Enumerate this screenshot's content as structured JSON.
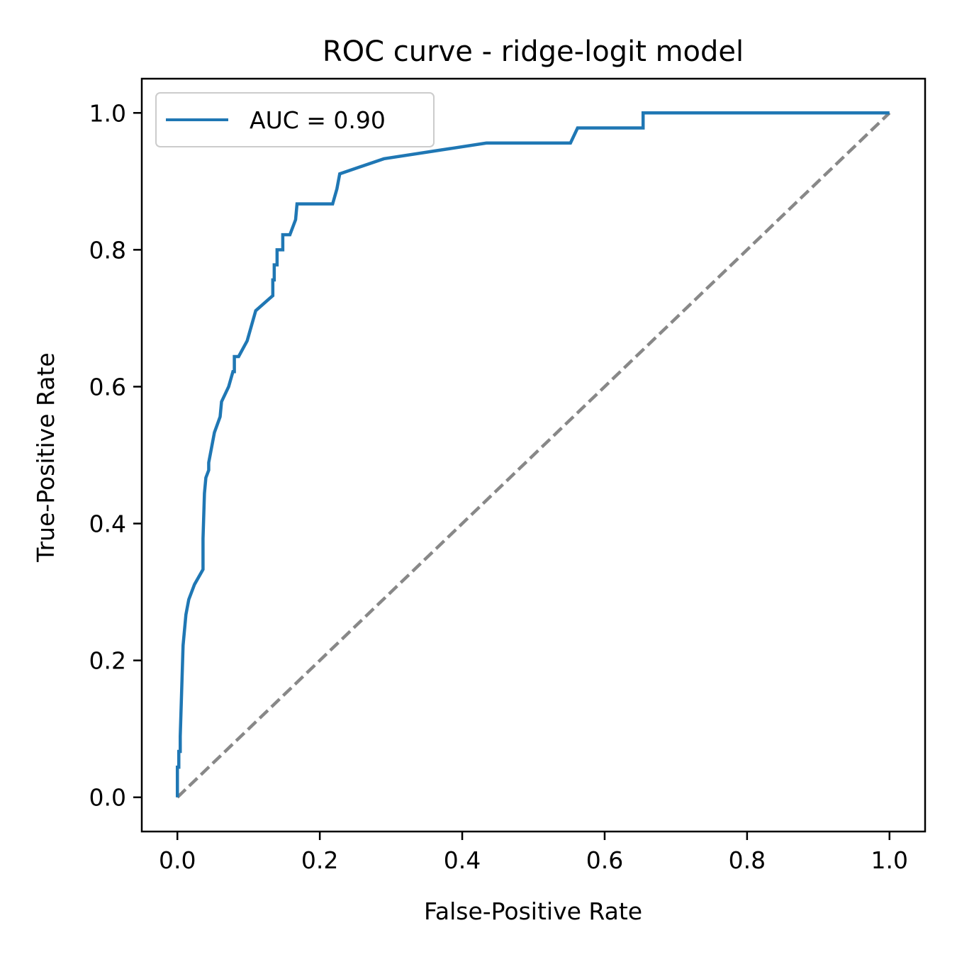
{
  "chart_data": {
    "type": "line",
    "title": "ROC curve - ridge-logit model",
    "xlabel": "False-Positive Rate",
    "ylabel": "True-Positive Rate",
    "xlim": [
      -0.05,
      1.05
    ],
    "ylim": [
      -0.05,
      1.05
    ],
    "xticks": [
      0.0,
      0.2,
      0.4,
      0.6,
      0.8,
      1.0
    ],
    "xtick_labels": [
      "0.0",
      "0.2",
      "0.4",
      "0.6",
      "0.8",
      "1.0"
    ],
    "yticks": [
      0.0,
      0.2,
      0.4,
      0.6,
      0.8,
      1.0
    ],
    "ytick_labels": [
      "0.0",
      "0.2",
      "0.4",
      "0.6",
      "0.8",
      "1.0"
    ],
    "grid": false,
    "legend_position": "top-left",
    "series": [
      {
        "name": "AUC = 0.90",
        "color": "#1f77b4",
        "style": "solid",
        "x": [
          0.0,
          0.0,
          0.002,
          0.002,
          0.004,
          0.004,
          0.008,
          0.008,
          0.012,
          0.012,
          0.016,
          0.016,
          0.024,
          0.024,
          0.036,
          0.036,
          0.038,
          0.038,
          0.04,
          0.04,
          0.044,
          0.044,
          0.052,
          0.052,
          0.06,
          0.062,
          0.062,
          0.072,
          0.072,
          0.078,
          0.08,
          0.08,
          0.086,
          0.086,
          0.098,
          0.098,
          0.104,
          0.104,
          0.11,
          0.11,
          0.134,
          0.134,
          0.136,
          0.136,
          0.14,
          0.14,
          0.148,
          0.148,
          0.158,
          0.158,
          0.166,
          0.168,
          0.168,
          0.218,
          0.224,
          0.224,
          0.228,
          0.228,
          0.29,
          0.29,
          0.434,
          0.434,
          0.552,
          0.562,
          0.654,
          0.654,
          1.0
        ],
        "y": [
          0.0,
          0.044,
          0.044,
          0.067,
          0.067,
          0.089,
          0.222,
          0.222,
          0.267,
          0.267,
          0.289,
          0.289,
          0.311,
          0.311,
          0.333,
          0.378,
          0.444,
          0.444,
          0.467,
          0.467,
          0.478,
          0.489,
          0.533,
          0.533,
          0.556,
          0.578,
          0.578,
          0.6,
          0.6,
          0.622,
          0.622,
          0.644,
          0.644,
          0.644,
          0.667,
          0.667,
          0.689,
          0.689,
          0.711,
          0.711,
          0.733,
          0.756,
          0.756,
          0.778,
          0.778,
          0.8,
          0.8,
          0.822,
          0.822,
          0.822,
          0.844,
          0.867,
          0.867,
          0.867,
          0.889,
          0.889,
          0.911,
          0.911,
          0.933,
          0.933,
          0.956,
          0.956,
          0.956,
          0.978,
          0.978,
          1.0,
          1.0
        ]
      },
      {
        "name": "",
        "color": "#888888",
        "style": "dashed",
        "x": [
          0.0,
          1.0
        ],
        "y": [
          0.0,
          1.0
        ]
      }
    ]
  }
}
